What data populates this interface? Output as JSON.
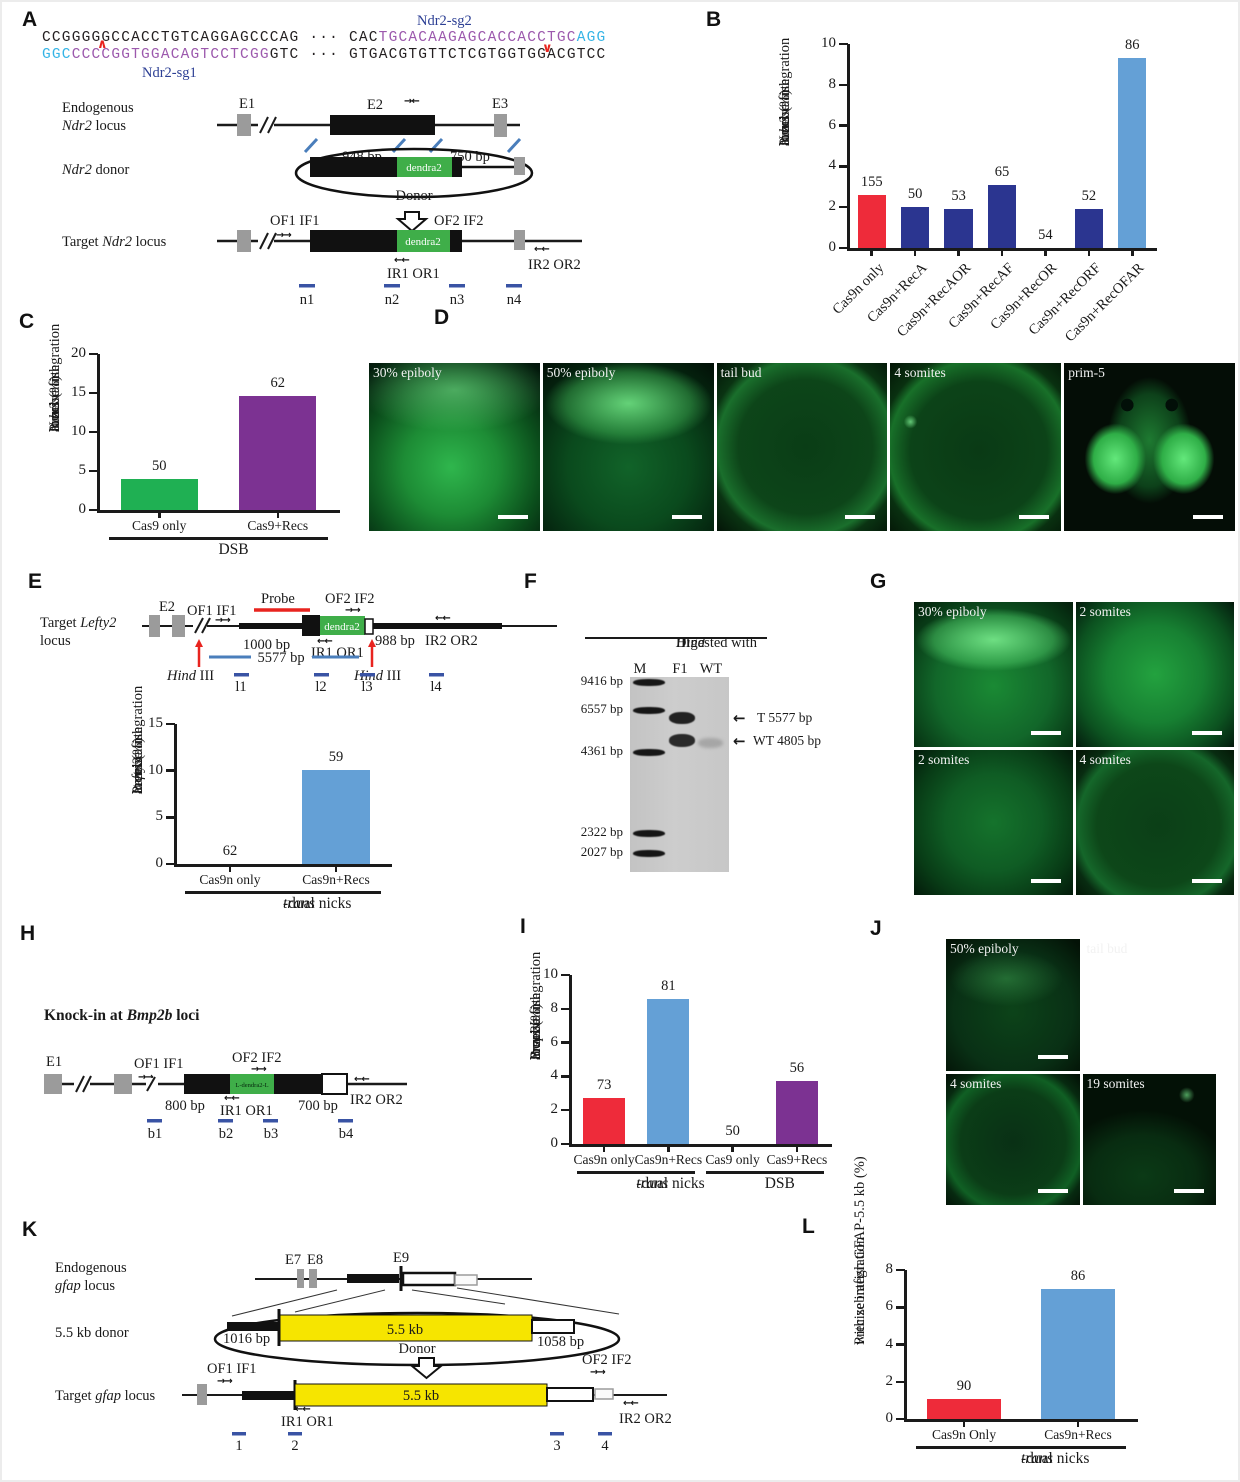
{
  "colors": {
    "seq": {
      "k": "#231f20",
      "p": "#9c59ad",
      "b": "#35b4e6"
    },
    "bar_red": "#ee2b3a",
    "bar_navy": "#2b3590",
    "bar_blue": "#64a0d6",
    "bar_green": "#1fb053",
    "bar_purple": "#7c3292",
    "probe_mark": "#3953a4",
    "yellow": "#f6e500",
    "dendra_green": "#3fae49",
    "exon_gray": "#9b9b9b",
    "accent_red": "#e8241f",
    "label_blue": "#2c3f94"
  },
  "icons": {
    "fwd": "→→",
    "rev": "←←",
    "pair": "→←",
    "arrow_left": "←"
  },
  "primers": {
    "p1": "OF1 IF1",
    "p2": "OF2 IF2",
    "r1": "IR1 OR1",
    "r2": "IR2 OR2"
  },
  "panels": {
    "A": {
      "letter": "A",
      "seq_top": [
        {
          "t": "CCGGGGGCCACCTGTCAGGAGCCCAG",
          "c": "k"
        },
        {
          "t": " ··· ",
          "c": "k"
        },
        {
          "t": "CAC",
          "c": "k"
        },
        {
          "t": "TGCACAAGAGCACCACCTGC",
          "c": "p"
        },
        {
          "t": "AGG",
          "c": "b"
        }
      ],
      "seq_bottom": [
        {
          "t": "GGC",
          "c": "b"
        },
        {
          "t": "CCCCGGTGGACAGTCCTCGG",
          "c": "p"
        },
        {
          "t": "GTC",
          "c": "k"
        },
        {
          "t": " ··· ",
          "c": "k"
        },
        {
          "t": "GTGACGTGTTCTCGTGGTGGACGTCC",
          "c": "k"
        }
      ],
      "sg1": "Ndr2-sg1",
      "sg2": "Ndr2-sg2",
      "caret_up": "∧",
      "caret_down": "∨",
      "endo1": [
        {
          "t": "Endogenous"
        }
      ],
      "endo2": [
        {
          "t": "Ndr2",
          "i": true
        },
        {
          "t": " locus"
        }
      ],
      "e1": "E1",
      "e2": "E2",
      "e3": "E3",
      "bp_left": "948 bp",
      "bp_right": "750 bp",
      "donor_label": [
        {
          "t": "Ndr2",
          "i": true
        },
        {
          "t": " donor"
        }
      ],
      "donor_word": "Donor",
      "dendra": "dendra2",
      "target_label": [
        {
          "t": "Target "
        },
        {
          "t": "Ndr2",
          "i": true
        },
        {
          "t": " locus"
        }
      ],
      "marks": [
        "n1",
        "n2",
        "n3",
        "n4"
      ]
    },
    "D": {
      "letter": "D",
      "images": [
        "30% epiboly",
        "50% epiboly",
        "tail bud",
        "4 somites",
        "prim-5"
      ]
    },
    "E": {
      "letter": "E",
      "target1": [
        {
          "t": "Target "
        },
        {
          "t": "Lefty2",
          "i": true
        }
      ],
      "target2": "locus",
      "e2": "E2",
      "probe": "Probe",
      "dendra": "dendra2",
      "bp_1000": "1000 bp",
      "bp_988": "988 bp",
      "bp_5577": "5577 bp",
      "hind": [
        {
          "t": "Hind",
          "i": true
        },
        {
          "t": " III"
        }
      ],
      "marks": [
        "l1",
        "l2",
        "l3",
        "l4"
      ]
    },
    "F": {
      "letter": "F",
      "title": [
        {
          "t": "Digested with "
        },
        {
          "t": "Hind",
          "i": true
        },
        {
          "t": " III"
        }
      ],
      "lanes": [
        "M",
        "F1",
        "WT"
      ],
      "ladder": [
        "9416 bp",
        "6557 bp",
        "4361 bp",
        "2322 bp",
        "2027 bp"
      ],
      "band_t": "T  5577 bp",
      "band_wt": "WT 4805 bp"
    },
    "G": {
      "letter": "G",
      "images": [
        "30% epiboly",
        "2 somites",
        "2 somites",
        "4 somites"
      ]
    },
    "H": {
      "letter": "H",
      "title": [
        {
          "t": "Knock-in at ",
          "b": true
        },
        {
          "t": "Bmp2b",
          "i": true,
          "b": true
        },
        {
          "t": "  loci",
          "b": true
        }
      ],
      "e1": "E1",
      "insert": "L-dendra2-L",
      "bp_left": "800 bp",
      "bp_right": "700 bp",
      "marks": [
        "b1",
        "b2",
        "b3",
        "b4"
      ]
    },
    "J": {
      "letter": "J",
      "images": [
        "50% epiboly",
        "tail bud",
        "4 somites",
        "19 somites"
      ]
    },
    "K": {
      "letter": "K",
      "endo1": "Endogenous",
      "endo2": [
        {
          "t": "gfap",
          "i": true
        },
        {
          "t": " locus"
        }
      ],
      "e7": "E7",
      "e8": "E8",
      "e9": "E9",
      "donor_label": "5.5 kb donor",
      "kb": "5.5 kb",
      "bp_left": "1016 bp",
      "bp_right": "1058 bp",
      "donor_word": "Donor",
      "target_label": [
        {
          "t": "Target "
        },
        {
          "t": "gfap",
          "i": true
        },
        {
          "t": " locus"
        }
      ],
      "marks": [
        "1",
        "2",
        "3",
        "4"
      ]
    }
  },
  "chart_data": [
    {
      "id": "B",
      "type": "bar",
      "ylabel_lines": [
        [
          {
            "t": "Precise integration"
          }
        ],
        [
          {
            "t": "at zebrafish "
          },
          {
            "t": "Ndr2",
            "i": true
          },
          {
            "t": " locus (%)"
          }
        ]
      ],
      "ylim": [
        0,
        10
      ],
      "yticks": [
        0,
        2,
        4,
        6,
        8,
        10
      ],
      "categories": [
        "Cas9n only",
        "Cas9n+RecA",
        "Cas9n+RecAOR",
        "Cas9n+RecAF",
        "Cas9n+RecOR",
        "Cas9n+RecORF",
        "Cas9n+RecOFAR"
      ],
      "values": [
        2.6,
        2.0,
        1.9,
        3.1,
        0,
        1.9,
        9.3
      ],
      "bar_labels": [
        "155",
        "50",
        "53",
        "65",
        "54",
        "52",
        "86"
      ],
      "colors": [
        "#ee2b3a",
        "#2b3590",
        "#2b3590",
        "#2b3590",
        "#2b3590",
        "#2b3590",
        "#64a0d6"
      ],
      "rotate_xticks": true,
      "groups": []
    },
    {
      "id": "C",
      "type": "bar",
      "ylabel_lines": [
        [
          {
            "t": "Precise integration"
          }
        ],
        [
          {
            "t": "at zebrafish "
          },
          {
            "t": "Ndr2",
            "i": true
          },
          {
            "t": " locus (%)"
          }
        ]
      ],
      "ylim": [
        0,
        20
      ],
      "yticks": [
        0,
        5,
        10,
        15,
        20
      ],
      "categories": [
        "Cas9 only",
        "Cas9+Recs"
      ],
      "values": [
        4.0,
        14.6
      ],
      "bar_labels": [
        "50",
        "62"
      ],
      "colors": [
        "#1fb053",
        "#7c3292"
      ],
      "rotate_xticks": false,
      "groups": [
        {
          "label": [
            {
              "t": "DSB"
            }
          ],
          "from": 0,
          "to": 1
        }
      ]
    },
    {
      "id": "E",
      "type": "bar",
      "ylabel_lines": [
        [
          {
            "t": "Precise integration"
          }
        ],
        [
          {
            "t": "at zebrafish "
          },
          {
            "t": "Lefty2",
            "i": true
          },
          {
            "t": " locus (%)"
          }
        ]
      ],
      "ylim": [
        0,
        15
      ],
      "yticks": [
        0,
        5,
        10,
        15
      ],
      "categories": [
        "Cas9n only",
        "Cas9n+Recs"
      ],
      "values": [
        0,
        10.1
      ],
      "bar_labels": [
        "62",
        "59"
      ],
      "colors": [
        "#64a0d6",
        "#64a0d6"
      ],
      "rotate_xticks": false,
      "groups": [
        {
          "label": [
            {
              "t": "trans",
              "i": true
            },
            {
              "t": "-dual nicks"
            }
          ],
          "from": 0,
          "to": 1
        }
      ]
    },
    {
      "id": "I",
      "type": "bar",
      "ylabel_lines": [
        [
          {
            "t": "Precise integration"
          }
        ],
        [
          {
            "t": "at zebrafish "
          },
          {
            "t": "Bmp2b",
            "i": true
          },
          {
            "t": " locus (%)"
          }
        ]
      ],
      "ylim": [
        0,
        10
      ],
      "yticks": [
        0,
        2,
        4,
        6,
        8,
        10
      ],
      "categories": [
        "Cas9n only",
        "Cas9n+Recs",
        "Cas9 only",
        "Cas9+Recs"
      ],
      "values": [
        2.7,
        8.6,
        0,
        3.7
      ],
      "bar_labels": [
        "73",
        "81",
        "50",
        "56"
      ],
      "colors": [
        "#ee2b3a",
        "#64a0d6",
        "#7c3292",
        "#7c3292"
      ],
      "rotate_xticks": false,
      "groups": [
        {
          "label": [
            {
              "t": "trans",
              "i": true
            },
            {
              "t": "-dual nicks"
            }
          ],
          "from": 0,
          "to": 1
        },
        {
          "label": [
            {
              "t": "DSB"
            }
          ],
          "from": 2,
          "to": 3
        }
      ]
    },
    {
      "id": "L",
      "type": "bar",
      "ylabel_lines": [
        [
          {
            "t": "Precise integration"
          }
        ],
        [
          {
            "t": "with zebrafish GFAP-5.5 kb (%)"
          }
        ]
      ],
      "ylim": [
        0,
        8
      ],
      "yticks": [
        0,
        2,
        4,
        6,
        8
      ],
      "categories": [
        "Cas9n Only",
        "Cas9n+Recs"
      ],
      "values": [
        1.1,
        7.0
      ],
      "bar_labels": [
        "90",
        "86"
      ],
      "colors": [
        "#ee2b3a",
        "#64a0d6"
      ],
      "rotate_xticks": false,
      "groups": [
        {
          "label": [
            {
              "t": "trans",
              "i": true
            },
            {
              "t": "-dual nicks"
            }
          ],
          "from": 0,
          "to": 1
        }
      ]
    }
  ]
}
